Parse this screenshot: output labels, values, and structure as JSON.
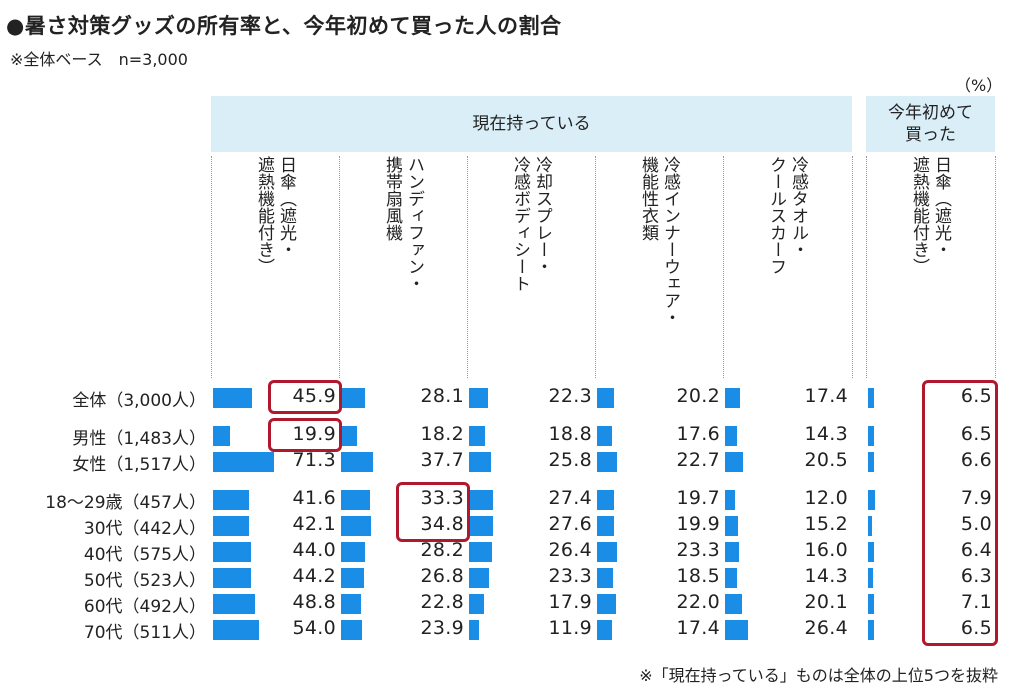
{
  "title": "●暑さ対策グッズの所有率と、今年初めて買った人の割合",
  "subtitle": "※全体ベース　n=3,000",
  "unit": "（%）",
  "footnote": "※「現在持っている」ものは全体の上位5つを抜粋",
  "chart_data": {
    "type": "table",
    "title": "●暑さ対策グッズの所有率と、今年初めて買った人の割合",
    "groups": [
      {
        "label": "現在持っている",
        "columns": [
          0,
          1,
          2,
          3,
          4
        ]
      },
      {
        "label": "今年初めて\n買った",
        "columns": [
          5
        ]
      }
    ],
    "columns": [
      "日傘（遮光・遮熱機能付き）",
      "ハンディファン・携帯扇風機",
      "冷却スプレー・冷感ボディシート",
      "冷感インナーウェア・機能性衣類",
      "冷感タオル・クールスカーフ",
      "日傘（遮光・遮熱機能付き）"
    ],
    "column_label_lines": [
      [
        "日傘（遮光・",
        "遮熱機能付き）"
      ],
      [
        "ハンディファン・",
        "携帯扇風機"
      ],
      [
        "冷却スプレー・",
        "冷感ボディシート"
      ],
      [
        "冷感インナーウェア・",
        "機能性衣類"
      ],
      [
        "冷感タオル・",
        "クールスカーフ"
      ],
      [
        "日傘（遮光・",
        "遮熱機能付き）"
      ]
    ],
    "rows": [
      {
        "label": "全体（3,000人）",
        "values": [
          45.9,
          28.1,
          22.3,
          20.2,
          17.4,
          6.5
        ]
      },
      {
        "label": "男性（1,483人）",
        "values": [
          19.9,
          18.2,
          18.8,
          17.6,
          14.3,
          6.5
        ]
      },
      {
        "label": "女性（1,517人）",
        "values": [
          71.3,
          37.7,
          25.8,
          22.7,
          20.5,
          6.6
        ]
      },
      {
        "label": "18～29歳（457人）",
        "values": [
          41.6,
          33.3,
          27.4,
          19.7,
          12.0,
          7.9
        ]
      },
      {
        "label": "30代（442人）",
        "values": [
          42.1,
          34.8,
          27.6,
          19.9,
          15.2,
          5.0
        ]
      },
      {
        "label": "40代（575人）",
        "values": [
          44.0,
          28.2,
          26.4,
          23.3,
          16.0,
          6.4
        ]
      },
      {
        "label": "50代（523人）",
        "values": [
          44.2,
          26.8,
          23.3,
          18.5,
          14.3,
          6.3
        ]
      },
      {
        "label": "60代（492人）",
        "values": [
          48.8,
          22.8,
          17.9,
          22.0,
          20.1,
          7.1
        ]
      },
      {
        "label": "70代（511人）",
        "values": [
          54.0,
          23.9,
          11.9,
          17.4,
          26.4,
          6.5
        ]
      }
    ],
    "highlights": [
      {
        "rows": [
          0
        ],
        "column": 0
      },
      {
        "rows": [
          1
        ],
        "column": 0
      },
      {
        "rows": [
          3,
          4
        ],
        "column": 1
      },
      {
        "rows": [
          0,
          1,
          2,
          3,
          4,
          5,
          6,
          7,
          8
        ],
        "column": 5
      }
    ],
    "bar_color": "#1a8ee6",
    "highlight_color": "#b0182d",
    "header_color": "#daeef8"
  }
}
